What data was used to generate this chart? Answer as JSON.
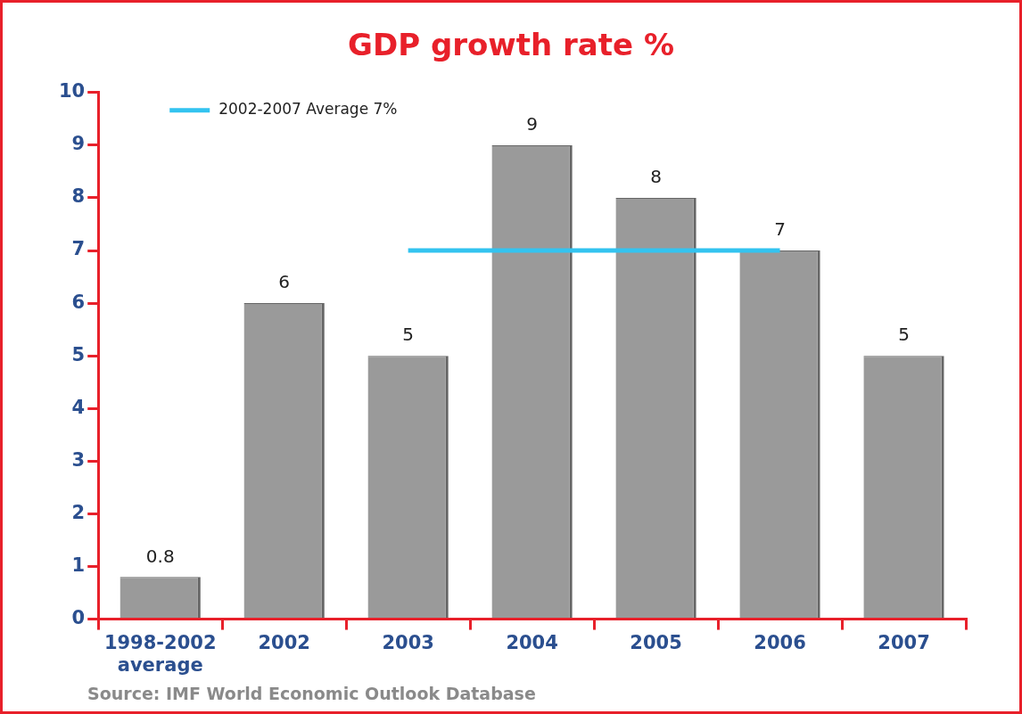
{
  "chart_data": {
    "type": "bar",
    "title": "GDP growth rate %",
    "categories": [
      "1998-2002 average",
      "2002",
      "2003",
      "2004",
      "2005",
      "2006",
      "2007"
    ],
    "series": [
      {
        "color": "#9a9a9a",
        "values": [
          0.8,
          6,
          5,
          9,
          8,
          7,
          5
        ],
        "value_labels": [
          "0.8",
          "6",
          "5",
          "9",
          "8",
          "7",
          "5"
        ]
      },
      {
        "type": "line",
        "name": "2002-2007 Average 7%",
        "color": "#33c3f0",
        "values": [
          null,
          null,
          7,
          7,
          7,
          7,
          null
        ]
      }
    ],
    "ylim": [
      0,
      10
    ],
    "yticks": [
      0,
      1,
      2,
      3,
      4,
      5,
      6,
      7,
      8,
      9,
      10
    ],
    "grid": false,
    "legend": "top left",
    "marker": "none",
    "annotations": [
      "Source: IMF World Economic Outlook Database"
    ]
  }
}
